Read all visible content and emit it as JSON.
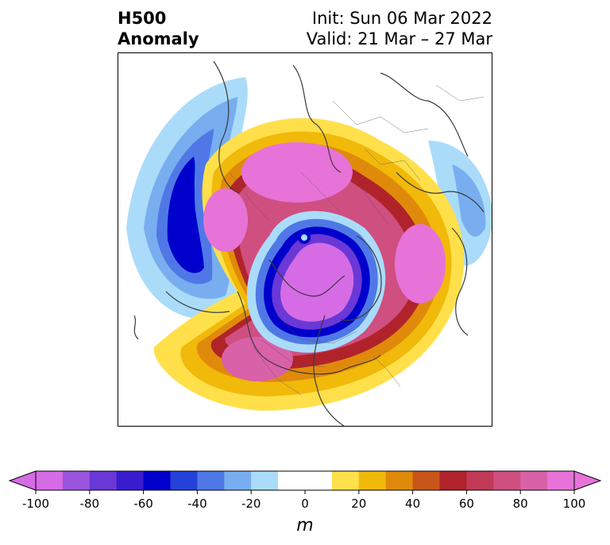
{
  "title": {
    "line1": "H500",
    "line2": "Anomaly",
    "init": "Init: Sun 06 Mar 2022",
    "valid": "Valid: 21 Mar – 27 Mar"
  },
  "map": {
    "projection": "north-polar-stereographic",
    "field": "500 hPa geopotential height anomaly",
    "features": [
      {
        "label": "negative-anomaly-center-north-pole",
        "value_min": -100
      },
      {
        "label": "negative-anomaly-north-pacific",
        "value_min": -60
      },
      {
        "label": "negative-anomaly-western-europe",
        "value_min": -30
      },
      {
        "label": "positive-anomaly-siberia",
        "value_max": 100
      },
      {
        "label": "positive-anomaly-north-atlantic-scandinavia",
        "value_max": 100
      },
      {
        "label": "positive-anomaly-alaska-canada",
        "value_max": 100
      }
    ]
  },
  "colorbar": {
    "ticks": [
      "-100",
      "-80",
      "-60",
      "-40",
      "-20",
      "0",
      "20",
      "40",
      "60",
      "80",
      "100"
    ],
    "unit_label": "m",
    "colors": [
      "#d66be6",
      "#9b54de",
      "#6a38d6",
      "#3a1ccf",
      "#0000cc",
      "#2541d9",
      "#4f78e6",
      "#78aef0",
      "#aadcfa",
      "#ffffff",
      "#ffffff",
      "#ffe04a",
      "#f1b90a",
      "#e08a0c",
      "#c8561a",
      "#b1232a",
      "#c23a57",
      "#cf4f80",
      "#d961a8",
      "#e773d8"
    ]
  }
}
